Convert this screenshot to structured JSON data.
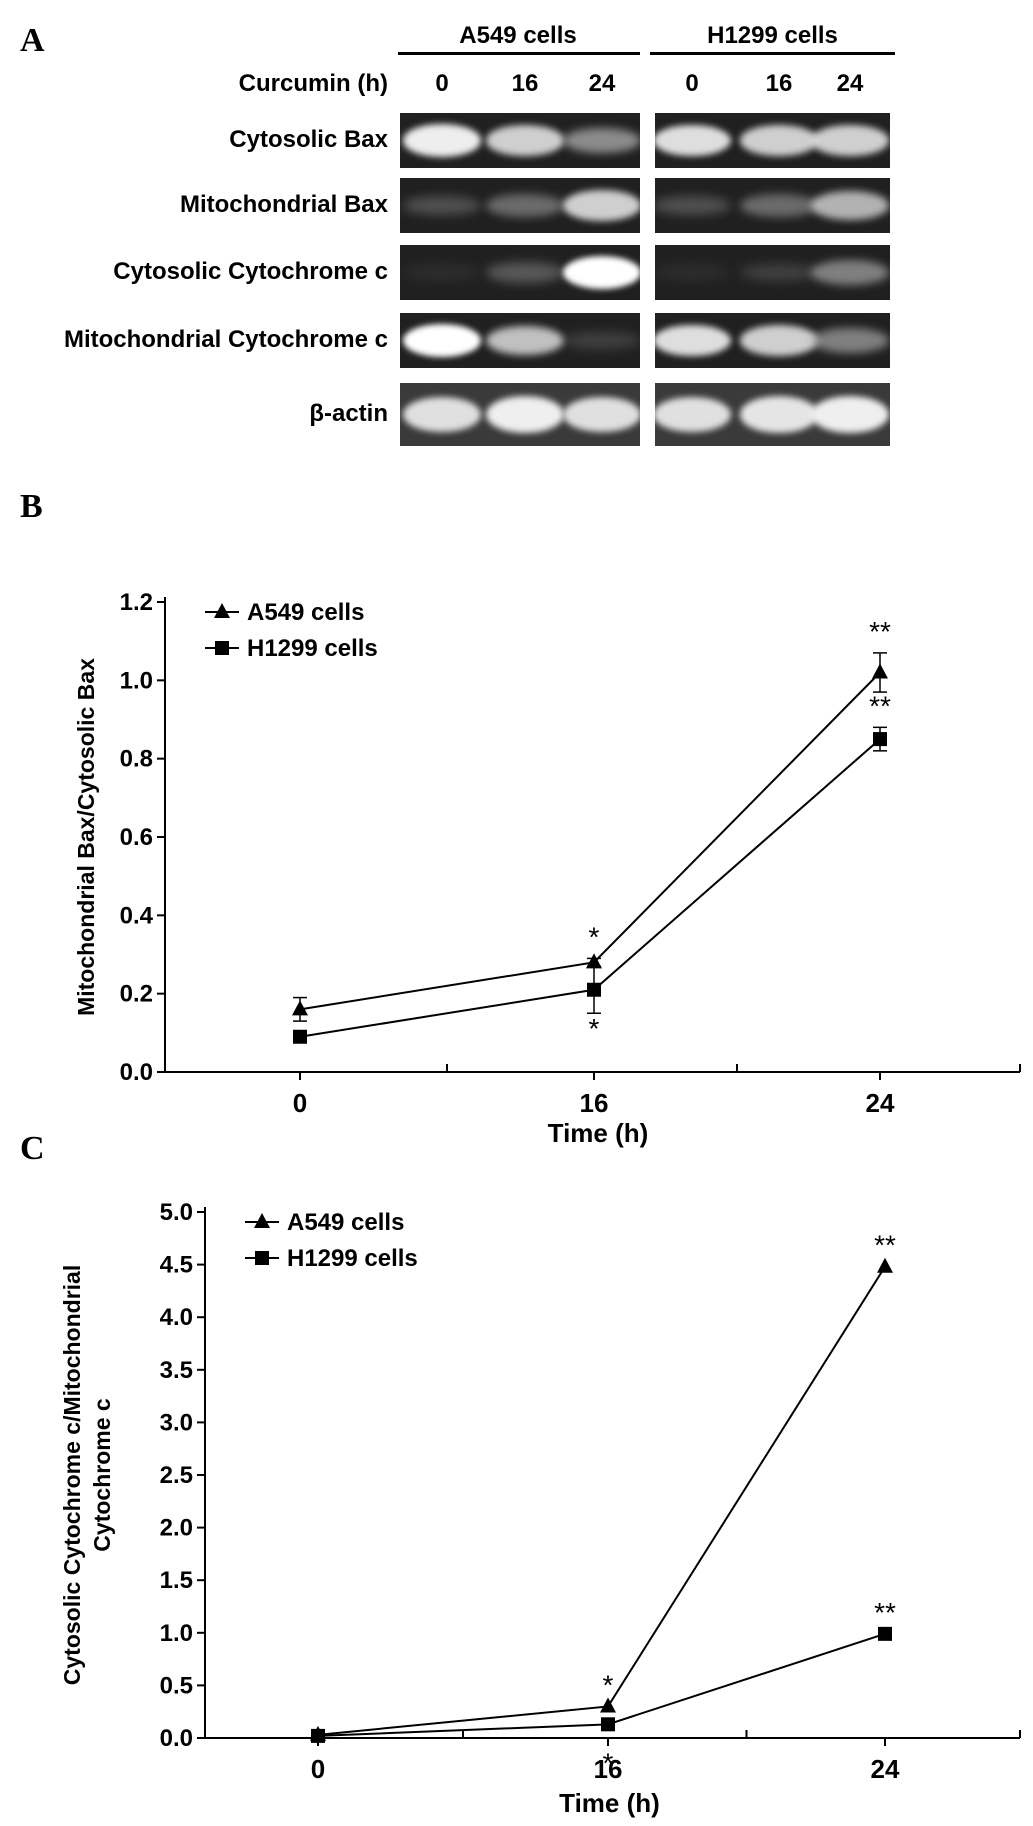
{
  "panels": {
    "a": "A",
    "b": "B",
    "c": "C"
  },
  "blot": {
    "cell_lines": [
      "A549 cells",
      "H1299 cells"
    ],
    "treatment_label": "Curcumin (h)",
    "lane_times": [
      "0",
      "16",
      "24",
      "0",
      "16",
      "24"
    ],
    "rows": [
      {
        "label": "Cytosolic Bax",
        "intensity": [
          0.95,
          0.85,
          0.6,
          0.9,
          0.85,
          0.85
        ],
        "bg": "#202020"
      },
      {
        "label": "Mitochondrial Bax",
        "intensity": [
          0.3,
          0.45,
          0.85,
          0.3,
          0.45,
          0.75
        ],
        "bg": "#202020"
      },
      {
        "label": "Cytosolic Cytochrome c",
        "intensity": [
          0.05,
          0.35,
          1.0,
          0.05,
          0.2,
          0.55
        ],
        "bg": "#202020"
      },
      {
        "label": "Mitochondrial Cytochrome c",
        "intensity": [
          1.0,
          0.8,
          0.2,
          0.9,
          0.85,
          0.55
        ],
        "bg": "#202020"
      },
      {
        "label": "β-actin",
        "intensity": [
          0.9,
          0.95,
          0.9,
          0.9,
          0.92,
          0.95
        ],
        "bg": "#3a3a3a"
      }
    ]
  },
  "chart_data": [
    {
      "type": "line",
      "x": [
        0,
        16,
        24
      ],
      "xticklabels": [
        "0",
        "16",
        "24"
      ],
      "xlabel": "Time (h)",
      "ylabel": "Mitochondrial Bax/Cytosolic Bax",
      "ylim": [
        0,
        1.2
      ],
      "yticks": [
        "0.0",
        "0.2",
        "0.4",
        "0.6",
        "0.8",
        "1.0",
        "1.2"
      ],
      "legend": "top-left",
      "series": [
        {
          "name": "A549 cells",
          "marker": "triangle",
          "values": [
            0.16,
            0.28,
            1.02
          ],
          "errors": [
            0.03,
            0.01,
            0.05
          ],
          "significance": [
            "",
            "*",
            "**"
          ]
        },
        {
          "name": "H1299 cells",
          "marker": "square",
          "values": [
            0.09,
            0.21,
            0.85
          ],
          "errors": [
            0.0,
            0.06,
            0.03
          ],
          "significance": [
            "",
            "*",
            "**"
          ]
        }
      ]
    },
    {
      "type": "line",
      "x": [
        0,
        16,
        24
      ],
      "xticklabels": [
        "0",
        "16",
        "24"
      ],
      "xlabel": "Time (h)",
      "ylabel_lines": [
        "Cytosolic Cytochrome c/Mitochondrial",
        "Cytochrome c"
      ],
      "ylim": [
        0,
        5.0
      ],
      "yticks": [
        "0.0",
        "0.5",
        "1.0",
        "1.5",
        "2.0",
        "2.5",
        "3.0",
        "3.5",
        "4.0",
        "4.5",
        "5.0"
      ],
      "legend": "top-left",
      "series": [
        {
          "name": "A549 cells",
          "marker": "triangle",
          "values": [
            0.03,
            0.3,
            4.48
          ],
          "errors": [
            0,
            0,
            0
          ],
          "significance": [
            "",
            "*",
            "**"
          ]
        },
        {
          "name": "H1299 cells",
          "marker": "square",
          "values": [
            0.02,
            0.13,
            0.99
          ],
          "errors": [
            0,
            0,
            0
          ],
          "significance": [
            "",
            "*",
            "**"
          ]
        }
      ]
    }
  ]
}
